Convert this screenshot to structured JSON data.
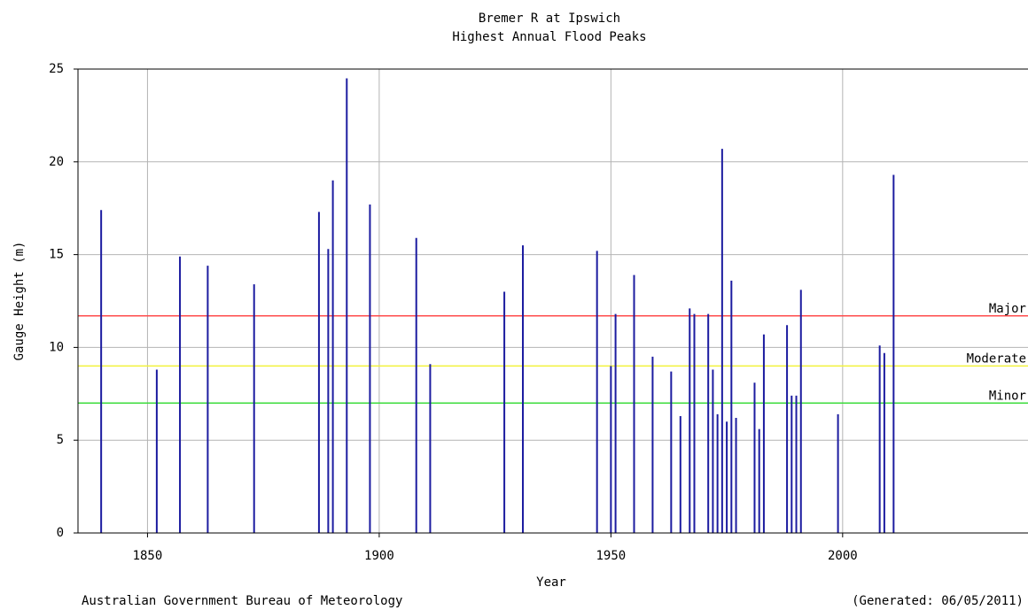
{
  "chart_data": {
    "type": "bar",
    "title": "Bremer R at Ipswich",
    "subtitle": "Highest Annual Flood Peaks",
    "x_label": "Year",
    "y_label": "Gauge Height (m)",
    "footer_left": "Australian Government Bureau of Meteorology",
    "footer_right": "(Generated: 06/05/2011)",
    "x": [
      1840,
      1852,
      1857,
      1863,
      1873,
      1887,
      1889,
      1890,
      1893,
      1898,
      1908,
      1911,
      1927,
      1931,
      1947,
      1950,
      1951,
      1955,
      1959,
      1963,
      1965,
      1967,
      1968,
      1971,
      1972,
      1973,
      1974,
      1975,
      1976,
      1977,
      1981,
      1982,
      1983,
      1988,
      1989,
      1990,
      1991,
      1999,
      2008,
      2009,
      2011
    ],
    "values": [
      17.4,
      8.8,
      14.9,
      14.4,
      13.4,
      17.3,
      15.3,
      19.0,
      24.5,
      17.7,
      15.9,
      9.1,
      13.0,
      15.5,
      15.2,
      9.0,
      11.8,
      13.9,
      9.5,
      8.7,
      6.3,
      12.1,
      11.8,
      11.8,
      8.8,
      6.4,
      20.7,
      6.0,
      13.6,
      6.2,
      8.1,
      5.6,
      10.7,
      11.2,
      7.4,
      7.4,
      13.1,
      6.4,
      10.1,
      9.7,
      19.3
    ],
    "color": "#1c1ca0",
    "xlim": [
      1835,
      2040
    ],
    "ylim": [
      0,
      25
    ],
    "xticks": [
      1850,
      1900,
      1950,
      2000
    ],
    "yticks": [
      0,
      5,
      10,
      15,
      20,
      25
    ],
    "grid": true,
    "reference_lines": [
      {
        "label": "Major",
        "value": 11.7,
        "color": "#ff4c4c"
      },
      {
        "label": "Moderate",
        "value": 9.0,
        "color": "#f2f23c"
      },
      {
        "label": "Minor",
        "value": 7.0,
        "color": "#3cdc3c"
      }
    ]
  }
}
